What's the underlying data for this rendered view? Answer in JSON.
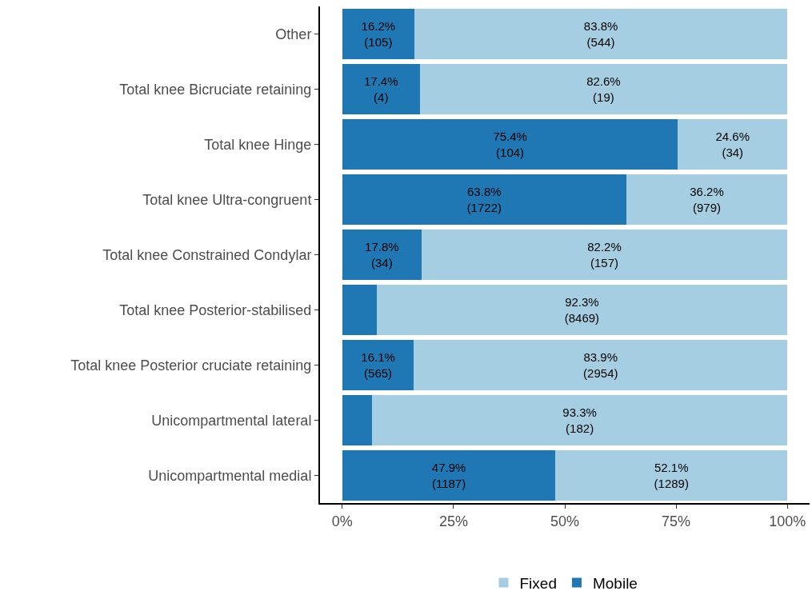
{
  "chart_data": {
    "type": "bar",
    "orientation": "horizontal",
    "stacked": true,
    "categories": [
      "Other",
      "Total knee Bicruciate retaining",
      "Total knee Hinge",
      "Total knee Ultra-congruent",
      "Total knee Constrained Condylar",
      "Total knee Posterior-stabilised",
      "Total knee Posterior cruciate retaining",
      "Unicompartmental lateral",
      "Unicompartmental medial"
    ],
    "series": [
      {
        "name": "Mobile",
        "color": "#1f78b4",
        "values": [
          16.2,
          17.4,
          75.4,
          63.8,
          17.8,
          7.7,
          16.1,
          6.7,
          47.9
        ],
        "value_labels": [
          "16.2%\n(105)",
          "17.4%\n(4)",
          "75.4%\n(104)",
          "63.8%\n(1722)",
          "17.8%\n(34)",
          null,
          "16.1%\n(565)",
          null,
          "47.9%\n(1187)"
        ]
      },
      {
        "name": "Fixed",
        "color": "#a6cee3",
        "values": [
          83.8,
          82.6,
          24.6,
          36.2,
          82.2,
          92.3,
          83.9,
          93.3,
          52.1
        ],
        "value_labels": [
          "83.8%\n(544)",
          "82.6%\n(19)",
          "24.6%\n(34)",
          "36.2%\n(979)",
          "82.2%\n(157)",
          "92.3%\n(8469)",
          "83.9%\n(2954)",
          "93.3%\n(182)",
          "52.1%\n(1289)"
        ]
      }
    ],
    "xlim": [
      -5,
      105
    ],
    "xticks": [
      {
        "value": 0,
        "label": "0%"
      },
      {
        "value": 25,
        "label": "25%"
      },
      {
        "value": 50,
        "label": "50%"
      },
      {
        "value": 75,
        "label": "75%"
      },
      {
        "value": 100,
        "label": "100%"
      }
    ],
    "grid": false,
    "legend": "bottom"
  }
}
